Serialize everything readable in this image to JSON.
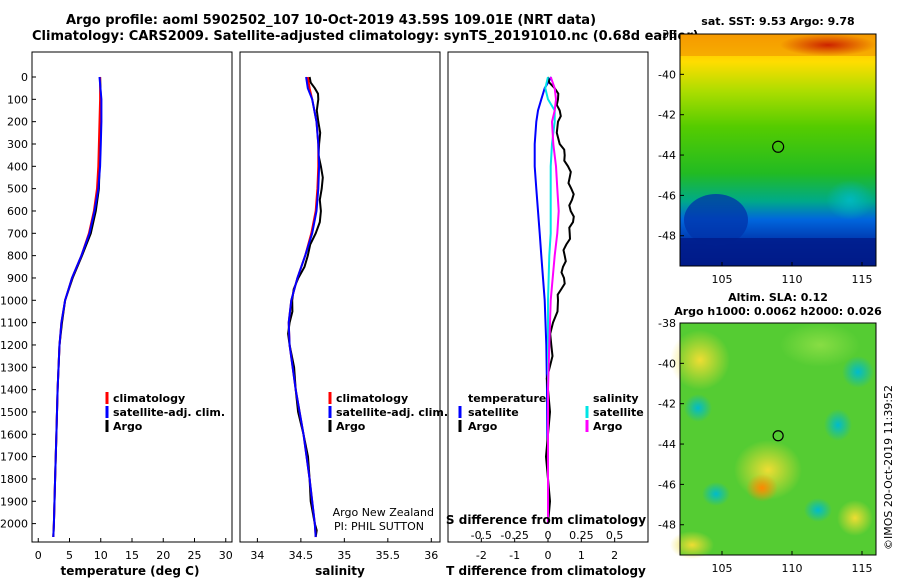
{
  "header": {
    "title_line1": "Argo profile: aoml 5902502_107 10-Oct-2019 43.59S 109.01E (NRT data)",
    "title_line2": "Climatology: CARS2009. Satellite-adjusted climatology: synTS_20191010.nc (0.68d earlier)"
  },
  "depth_ticks": [
    "0",
    "100",
    "200",
    "300",
    "400",
    "500",
    "600",
    "700",
    "800",
    "900",
    "1000",
    "1100",
    "1200",
    "1300",
    "1400",
    "1500",
    "1600",
    "1700",
    "1800",
    "1900",
    "2000"
  ],
  "colors": {
    "climatology": "#ff0000",
    "satellite": "#0000ff",
    "argo": "#000000",
    "salinity_sat": "#00e5e5",
    "salinity_argo": "#ff00ff"
  },
  "panels": {
    "temperature": {
      "xlabel": "temperature (deg C)",
      "ticks": [
        "0",
        "5",
        "10",
        "15",
        "20",
        "25",
        "30"
      ],
      "legend": [
        "climatology",
        "satellite-adj. clim.",
        "Argo"
      ]
    },
    "salinity": {
      "xlabel": "salinity",
      "ticks": [
        "34",
        "34.5",
        "35",
        "35.5",
        "36"
      ],
      "legend": [
        "climatology",
        "satellite-adj. clim.",
        "Argo"
      ],
      "credit_line1": "Argo New Zealand",
      "credit_line2": "PI: PHIL SUTTON"
    },
    "difference": {
      "xlabel": "T difference from climatology",
      "ticks": [
        "-2",
        "-1",
        "0",
        "1",
        "2"
      ],
      "s_title": "S difference from climatology",
      "s_ticks": [
        "-0.5",
        "-0.25",
        "0",
        "0.25",
        "0.5"
      ],
      "legend_temperature": "temperature",
      "legend_salinity": "salinity",
      "legend_satellite": "satellite",
      "legend_argo": "Argo"
    }
  },
  "chart_data": [
    {
      "type": "line",
      "title": "temperature",
      "xlabel": "temperature (deg C)",
      "ylabel": "depth",
      "xlim": [
        -1,
        31
      ],
      "ylim": [
        2060,
        0
      ],
      "series": [
        {
          "name": "climatology",
          "depth": [
            0,
            100,
            200,
            300,
            400,
            500,
            600,
            700,
            800,
            900,
            1000,
            1100,
            1200,
            1400,
            1600,
            1800,
            2000,
            2060
          ],
          "values": [
            9.9,
            9.9,
            9.8,
            9.7,
            9.6,
            9.4,
            8.9,
            8.1,
            6.9,
            5.4,
            4.3,
            3.7,
            3.4,
            3.1,
            2.9,
            2.7,
            2.5,
            2.4
          ]
        },
        {
          "name": "satellite-adj. clim.",
          "depth": [
            0,
            100,
            200,
            300,
            400,
            500,
            600,
            700,
            800,
            900,
            1000,
            1100,
            1200,
            1400,
            1600,
            1800,
            2000,
            2060
          ],
          "values": [
            9.8,
            10.1,
            10.1,
            10.0,
            9.9,
            9.6,
            9.0,
            8.2,
            6.9,
            5.4,
            4.3,
            3.7,
            3.4,
            3.1,
            2.9,
            2.7,
            2.5,
            2.4
          ]
        },
        {
          "name": "Argo",
          "depth": [
            0,
            100,
            200,
            300,
            400,
            500,
            600,
            700,
            800,
            900,
            1000,
            1100,
            1200,
            1400,
            1600,
            1800,
            2000,
            2060
          ],
          "values": [
            9.9,
            10.0,
            10.0,
            9.9,
            9.8,
            9.7,
            9.2,
            8.4,
            7.0,
            5.5,
            4.3,
            3.8,
            3.4,
            3.1,
            2.9,
            2.7,
            2.5,
            2.4
          ]
        }
      ]
    },
    {
      "type": "line",
      "title": "salinity",
      "xlabel": "salinity",
      "ylabel": "depth",
      "xlim": [
        33.8,
        36.1
      ],
      "ylim": [
        2060,
        0
      ],
      "series": [
        {
          "name": "climatology",
          "depth": [
            0,
            50,
            100,
            200,
            300,
            400,
            500,
            600,
            700,
            800,
            900,
            1000,
            1100,
            1200,
            1400,
            1600,
            1800,
            2000,
            2060
          ],
          "values": [
            34.58,
            34.6,
            34.63,
            34.68,
            34.7,
            34.7,
            34.69,
            34.67,
            34.62,
            34.55,
            34.46,
            34.39,
            34.36,
            34.37,
            34.44,
            34.53,
            34.6,
            34.66,
            34.67
          ]
        },
        {
          "name": "satellite-adj. clim.",
          "depth": [
            0,
            50,
            100,
            200,
            300,
            400,
            500,
            600,
            700,
            800,
            900,
            1000,
            1100,
            1200,
            1400,
            1600,
            1800,
            2000,
            2060
          ],
          "values": [
            34.56,
            34.58,
            34.63,
            34.68,
            34.7,
            34.71,
            34.7,
            34.68,
            34.63,
            34.55,
            34.46,
            34.39,
            34.36,
            34.37,
            34.44,
            34.53,
            34.6,
            34.66,
            34.67
          ]
        },
        {
          "name": "Argo",
          "depth": [
            0,
            50,
            100,
            200,
            300,
            400,
            500,
            600,
            700,
            800,
            900,
            1000,
            1100,
            1200,
            1400,
            1600,
            1800,
            2000,
            2060
          ],
          "values": [
            34.6,
            34.66,
            34.7,
            34.7,
            34.71,
            34.73,
            34.74,
            34.73,
            34.67,
            34.58,
            34.47,
            34.4,
            34.37,
            34.37,
            34.44,
            34.53,
            34.6,
            34.66,
            34.67
          ]
        }
      ]
    },
    {
      "type": "line",
      "title": "T difference from climatology",
      "xlabel": "T difference from climatology",
      "ylabel": "depth",
      "xlim": [
        -3,
        3
      ],
      "ylim": [
        2060,
        0
      ],
      "s_axis": {
        "label": "S difference from climatology",
        "xlim": [
          -0.75,
          0.75
        ]
      },
      "series": [
        {
          "name": "temperature satellite",
          "axis": "T",
          "depth": [
            0,
            50,
            100,
            150,
            200,
            300,
            400,
            500,
            600,
            700,
            800,
            900,
            1000,
            1200,
            1400,
            1600,
            1800,
            2000
          ],
          "values": [
            0.1,
            -0.1,
            -0.2,
            -0.3,
            -0.35,
            -0.4,
            -0.4,
            -0.35,
            -0.3,
            -0.25,
            -0.2,
            -0.15,
            -0.1,
            -0.05,
            -0.03,
            -0.02,
            0.0,
            0.0
          ]
        },
        {
          "name": "temperature Argo",
          "axis": "T",
          "depth": [
            0,
            50,
            100,
            150,
            200,
            300,
            350,
            400,
            450,
            500,
            550,
            600,
            650,
            700,
            750,
            800,
            850,
            900,
            950,
            1000,
            1100,
            1200,
            1300,
            1400,
            1600,
            1800,
            2000
          ],
          "values": [
            0.0,
            0.2,
            0.3,
            0.35,
            0.3,
            0.35,
            0.5,
            0.6,
            0.65,
            0.7,
            0.72,
            0.68,
            0.75,
            0.65,
            0.55,
            0.5,
            0.45,
            0.48,
            0.4,
            0.3,
            0.15,
            0.1,
            0.05,
            0.0,
            0.0,
            0.0,
            0.0
          ]
        },
        {
          "name": "salinity satellite",
          "axis": "S",
          "depth": [
            0,
            50,
            100,
            150,
            200,
            300,
            400,
            500,
            600,
            700,
            800,
            1000,
            1200,
            1400,
            1600,
            1800,
            2000
          ],
          "values": [
            0.0,
            -0.02,
            0.0,
            0.05,
            0.05,
            0.03,
            0.02,
            0.02,
            0.02,
            0.02,
            0.01,
            0.0,
            0.0,
            0.0,
            0.0,
            0.0,
            0.0
          ]
        },
        {
          "name": "salinity Argo",
          "axis": "S",
          "depth": [
            0,
            50,
            100,
            150,
            200,
            300,
            400,
            500,
            600,
            700,
            800,
            1000,
            1200,
            1400,
            1600,
            1800,
            2000
          ],
          "values": [
            0.02,
            0.05,
            0.06,
            0.05,
            0.03,
            0.04,
            0.06,
            0.07,
            0.08,
            0.07,
            0.05,
            0.02,
            0.01,
            0.0,
            0.0,
            0.0,
            0.0
          ]
        }
      ]
    },
    {
      "type": "heatmap",
      "title": "sat. SST: 9.53 Argo: 9.78",
      "x_ticks": [
        "105",
        "110",
        "115"
      ],
      "y_ticks": [
        "-38",
        "-40",
        "-42",
        "-44",
        "-46",
        "-48"
      ],
      "xlim": [
        102,
        116
      ],
      "ylim": [
        -49.5,
        -38
      ],
      "marker": {
        "lon": 109.01,
        "lat": -43.59
      }
    },
    {
      "type": "heatmap",
      "title": "Altim. SLA: 0.12",
      "subtitle": "Argo h1000: 0.0062 h2000: 0.026",
      "x_ticks": [
        "105",
        "110",
        "115"
      ],
      "y_ticks": [
        "-38",
        "-40",
        "-42",
        "-44",
        "-46",
        "-48"
      ],
      "xlim": [
        102,
        116
      ],
      "ylim": [
        -49.5,
        -38
      ],
      "marker": {
        "lon": 109.01,
        "lat": -43.59
      }
    }
  ],
  "stamp": "©IMOS 20-Oct-2019 11:39:52"
}
